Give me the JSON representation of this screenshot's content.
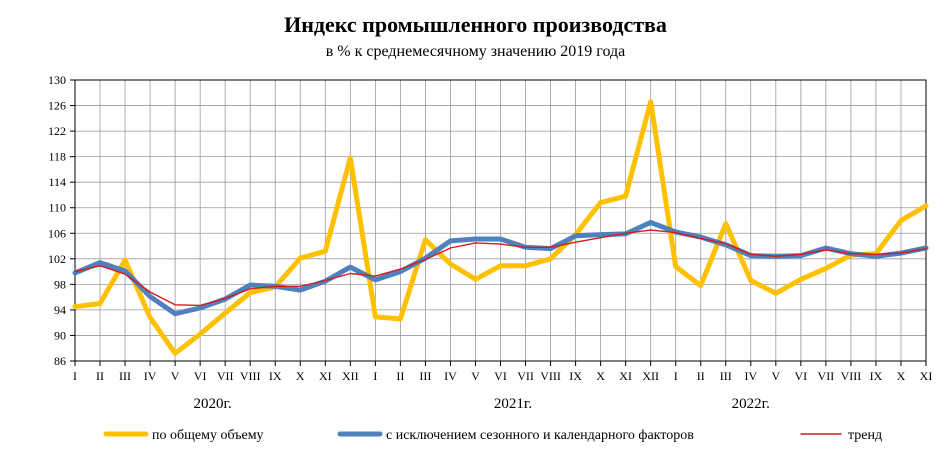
{
  "chart_data": {
    "type": "line",
    "title": "Индекс промышленного производства",
    "subtitle": "в % к среднемесячному значению 2019 года",
    "ylim": [
      86,
      130
    ],
    "yticks": [
      86,
      90,
      94,
      98,
      102,
      106,
      110,
      114,
      118,
      122,
      126,
      130
    ],
    "grid": true,
    "legend_position": "bottom",
    "categories": [
      "I",
      "II",
      "III",
      "IV",
      "V",
      "VI",
      "VII",
      "VIII",
      "IX",
      "X",
      "XI",
      "XII",
      "I",
      "II",
      "III",
      "IV",
      "V",
      "VI",
      "VII",
      "VIII",
      "IX",
      "X",
      "XI",
      "XII",
      "I",
      "II",
      "III",
      "IV",
      "V",
      "VI",
      "VII",
      "VIII",
      "IX",
      "X",
      "XI"
    ],
    "year_labels": [
      {
        "label": "2020г.",
        "center_index": 5.5
      },
      {
        "label": "2021г.",
        "center_index": 17.5
      },
      {
        "label": "2022г.",
        "center_index": 27.0
      }
    ],
    "series": [
      {
        "name": "по общему объему",
        "color": "#FFC000",
        "values": [
          94.5,
          95.0,
          101.8,
          92.8,
          87.2,
          90.2,
          93.5,
          96.7,
          97.6,
          102.1,
          103.2,
          117.8,
          92.9,
          92.6,
          105.0,
          101.2,
          98.8,
          100.9,
          100.9,
          102.0,
          105.8,
          110.8,
          111.8,
          126.6,
          100.8,
          97.8,
          107.5,
          98.6,
          96.6,
          98.8,
          100.5,
          102.6,
          102.8,
          108.0,
          110.3
        ]
      },
      {
        "name": "с исключением сезонного и календарного факторов",
        "color": "#4F81BD",
        "values": [
          99.8,
          101.4,
          100.1,
          96.1,
          93.4,
          94.3,
          95.7,
          97.9,
          97.7,
          97.1,
          98.5,
          100.7,
          98.7,
          100.0,
          102.1,
          104.8,
          105.1,
          105.1,
          103.8,
          103.6,
          105.6,
          105.8,
          105.9,
          107.7,
          106.2,
          105.4,
          104.2,
          102.5,
          102.4,
          102.5,
          103.7,
          102.8,
          102.4,
          102.9,
          103.7
        ]
      },
      {
        "name": "тренд",
        "color": "#D7191C",
        "values": [
          100.0,
          100.9,
          99.6,
          96.8,
          94.8,
          94.7,
          95.8,
          97.3,
          97.7,
          97.7,
          98.6,
          99.7,
          99.3,
          100.4,
          101.9,
          103.7,
          104.5,
          104.3,
          103.8,
          103.8,
          104.6,
          105.3,
          106.0,
          106.5,
          106.1,
          105.2,
          104.4,
          102.7,
          102.4,
          102.7,
          103.4,
          102.8,
          102.7,
          102.9,
          103.6
        ]
      }
    ]
  }
}
